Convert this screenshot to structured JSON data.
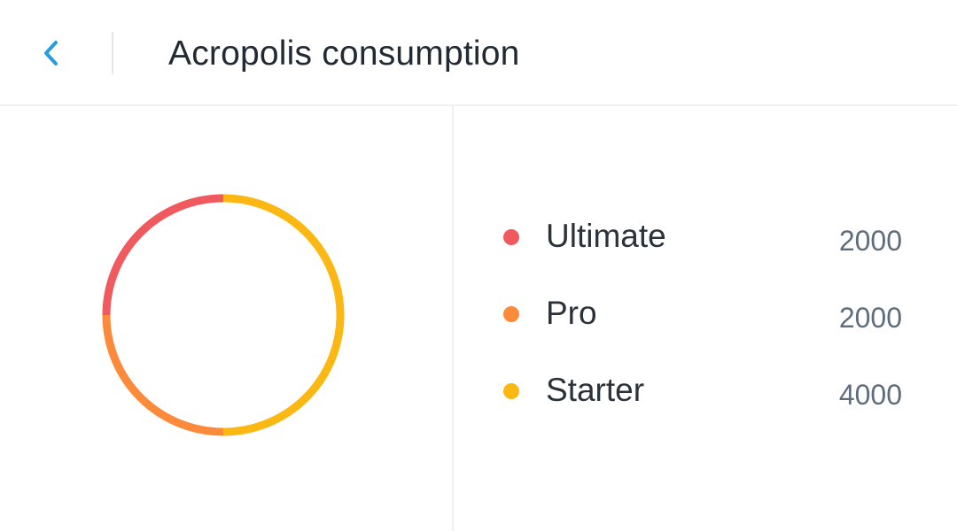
{
  "header": {
    "title": "Acropolis consumption",
    "back_icon": "chevron-left-icon",
    "accent_color": "#2a9bdf"
  },
  "chart_data": {
    "type": "pie",
    "style": "donut-ring",
    "title": "",
    "series": [
      {
        "name": "Ultimate",
        "value": 2000,
        "color": "#f0595e"
      },
      {
        "name": "Pro",
        "value": 2000,
        "color": "#fb8a3b"
      },
      {
        "name": "Starter",
        "value": 4000,
        "color": "#fbb812"
      }
    ]
  },
  "legend": {
    "items": [
      {
        "label": "Ultimate",
        "value": "2000",
        "color": "#f0595e"
      },
      {
        "label": "Pro",
        "value": "2000",
        "color": "#fb8a3b"
      },
      {
        "label": "Starter",
        "value": "4000",
        "color": "#fbb812"
      }
    ]
  }
}
